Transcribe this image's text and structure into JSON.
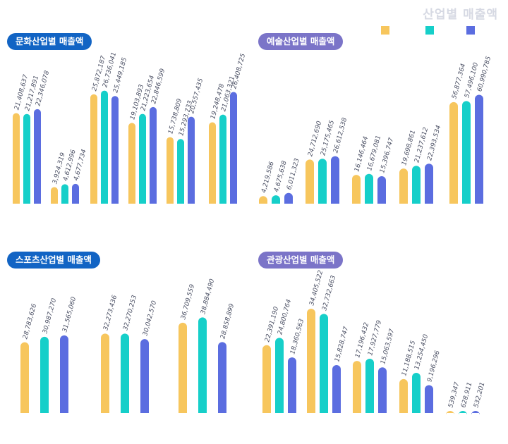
{
  "header": {
    "title": "산업별 매출액"
  },
  "colors": {
    "series": [
      "#f7c65d",
      "#16cfc9",
      "#5b6de0"
    ],
    "pill_blue": "#1264c4",
    "pill_purple": "#7b74c8"
  },
  "legend": {
    "series": [
      {
        "color": "#f7c65d"
      },
      {
        "color": "#16cfc9"
      },
      {
        "color": "#5b6de0"
      }
    ]
  },
  "chart_data": [
    {
      "type": "bar",
      "title": "문화산업별 매출액",
      "title_color": "#1264c4",
      "ylim": [
        0,
        28000000
      ],
      "groups": [
        [
          21408637,
          21217891,
          22346078
        ],
        [
          3924319,
          4612996,
          4677734
        ],
        [
          25872187,
          26736041,
          25449185
        ],
        [
          19103893,
          21223654,
          22846599
        ],
        [
          15738809,
          15293733,
          20557435
        ],
        [
          19248478,
          21063321,
          26408725
        ]
      ],
      "labels": [
        [
          "21,408,637",
          "21,217,891",
          "22,346,078"
        ],
        [
          "3,924,319",
          "4,612,996",
          "4,677,734"
        ],
        [
          "25,872,187",
          "26,736,041",
          "25,449,185"
        ],
        [
          "19,103,893",
          "21,223,654",
          "22,846,599"
        ],
        [
          "15,738,809",
          "15,293,733",
          "20,557,435"
        ],
        [
          "19,248,478",
          "21,063,321",
          "26,408,725"
        ]
      ]
    },
    {
      "type": "bar",
      "title": "예술산업별 매출액",
      "title_color": "#7b74c8",
      "ylim": [
        0,
        75000000
      ],
      "groups": [
        [
          4219586,
          4675638,
          6011323
        ],
        [
          24712690,
          25175465,
          26612538
        ],
        [
          16146464,
          16679081,
          15396747
        ],
        [
          19698861,
          21237612,
          22393534
        ],
        [
          56877364,
          57496100,
          60990785
        ]
      ],
      "labels": [
        [
          "4,219,586",
          "4,675,638",
          "6,011,323"
        ],
        [
          "24,712,690",
          "25,175,465",
          "26,612,538"
        ],
        [
          "16,146,464",
          "16,679,081",
          "15,396,747"
        ],
        [
          "19,698,861",
          "21,237,612",
          "22,393,534"
        ],
        [
          "56,877,364",
          "57,496,100",
          "60,990,785"
        ]
      ]
    },
    {
      "type": "bar",
      "title": "스포츠산업별 매출액",
      "title_color": "#1264c4",
      "ylim": [
        0,
        45000000
      ],
      "groups": [
        [
          28783626,
          30987270,
          31565060
        ],
        [
          32273436,
          32270253,
          30042570
        ],
        [
          36709559,
          38884490,
          28858899
        ]
      ],
      "labels": [
        [
          "28,783,626",
          "30,987,270",
          "31,565,060"
        ],
        [
          "32,273,436",
          "32,270,253",
          "30,042,570"
        ],
        [
          "36,709,559",
          "38,884,490",
          "28,858,899"
        ]
      ]
    },
    {
      "type": "bar",
      "title": "관광산업별 매출액",
      "title_color": "#7b74c8",
      "ylim": [
        0,
        37000000
      ],
      "groups": [
        [
          22391190,
          24800764,
          18360563
        ],
        [
          34405522,
          32732663,
          15828747
        ],
        [
          17196432,
          17927779,
          15063597
        ],
        [
          11188515,
          13254450,
          9196296
        ],
        [
          539347,
          628911,
          532201
        ]
      ],
      "labels": [
        [
          "22,391,190",
          "24,800,764",
          "18,360,563"
        ],
        [
          "34,405,522",
          "32,732,663",
          "15,828,747"
        ],
        [
          "17,196,432",
          "17,927,779",
          "15,063,597"
        ],
        [
          "11,188,515",
          "13,254,450",
          "9,196,296"
        ],
        [
          "539,347",
          "628,911",
          "532,201"
        ]
      ]
    }
  ]
}
